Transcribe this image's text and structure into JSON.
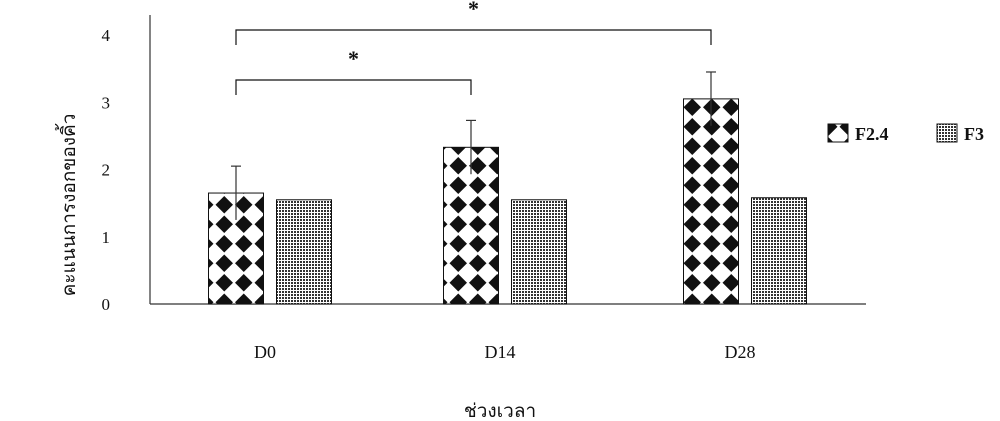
{
  "chart_data": {
    "type": "bar",
    "categories": [
      "D0",
      "D14",
      "D28"
    ],
    "series": [
      {
        "name": "F2.4",
        "values": [
          1.65,
          2.33,
          3.05
        ],
        "errors": [
          0.4,
          0.4,
          0.4
        ],
        "pattern": "diamond-checker"
      },
      {
        "name": "F3",
        "values": [
          1.55,
          1.55,
          1.58
        ],
        "errors": [
          0.01,
          0.01,
          0.02
        ],
        "pattern": "fine-dots"
      }
    ],
    "title": "",
    "xlabel": "ช่วงเวลา",
    "ylabel": "คะแนนการงอกของคิ้ว",
    "ylim": [
      0,
      4
    ],
    "yticks": [
      0,
      1,
      2,
      3,
      4
    ],
    "grid": false,
    "legend_position": "right",
    "significance": [
      {
        "from": "D0",
        "to": "D14",
        "label": "*"
      },
      {
        "from": "D0",
        "to": "D28",
        "label": "*"
      }
    ],
    "colors": {
      "bar_dark": "#111111",
      "bar_light": "#ffffff",
      "axis": "#333333"
    }
  }
}
